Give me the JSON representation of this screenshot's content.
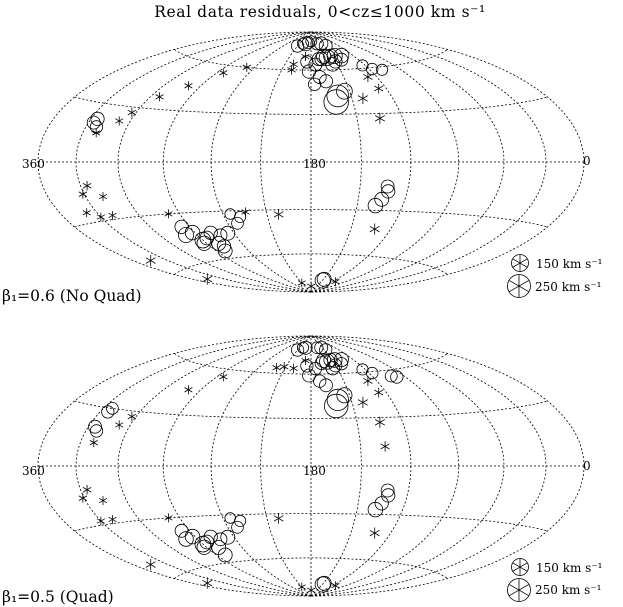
{
  "title": "Real data residuals, 0<cz≤1000 km s⁻¹",
  "colors": {
    "ink": "#000000",
    "background": "#ffffff"
  },
  "chart_data": [
    {
      "type": "scatter",
      "projection": "aitoff-hammer",
      "grid": true,
      "xlim": [
        360,
        0
      ],
      "tick_labels": {
        "left": "360",
        "center": "180",
        "right": "0"
      },
      "panel_label": "β₁=0.6 (No Quad)",
      "legend_placement": "bottom-right",
      "legend": [
        {
          "label": "150 km s⁻¹",
          "value": 150
        },
        {
          "label": "250 km s⁻¹",
          "value": 250
        }
      ],
      "points": [
        {
          "l": 213,
          "b": 78,
          "v": 70,
          "s": "pos"
        },
        {
          "l": 207,
          "b": 80,
          "v": 80,
          "s": "pos"
        },
        {
          "l": 196,
          "b": 80,
          "v": 60,
          "s": "pos"
        },
        {
          "l": 172,
          "b": 81,
          "v": 50,
          "s": "pos"
        },
        {
          "l": 166,
          "b": 80,
          "v": 90,
          "s": "pos"
        },
        {
          "l": 224,
          "b": 70,
          "v": 100,
          "s": "pos"
        },
        {
          "l": 214,
          "b": 70,
          "v": 110,
          "s": "pos"
        },
        {
          "l": 208,
          "b": 70,
          "v": 90,
          "s": "pos"
        },
        {
          "l": 202,
          "b": 69,
          "v": 120,
          "s": "pos"
        },
        {
          "l": 198,
          "b": 70,
          "v": 95,
          "s": "pos"
        },
        {
          "l": 194,
          "b": 68,
          "v": 80,
          "s": "pos"
        },
        {
          "l": 190,
          "b": 68,
          "v": 70,
          "s": "pos"
        },
        {
          "l": 219,
          "b": 67,
          "v": 70,
          "s": "pos"
        },
        {
          "l": 210,
          "b": 66,
          "v": 80,
          "s": "pos"
        },
        {
          "l": 205,
          "b": 64,
          "v": 90,
          "s": "pos"
        },
        {
          "l": 185,
          "b": 64,
          "v": 70,
          "s": "pos"
        },
        {
          "l": 175,
          "b": 66,
          "v": 60,
          "s": "pos"
        },
        {
          "l": 178,
          "b": 59,
          "v": 80,
          "s": "pos"
        },
        {
          "l": 188,
          "b": 55,
          "v": 70,
          "s": "pos"
        },
        {
          "l": 193,
          "b": 52,
          "v": 75,
          "s": "pos"
        },
        {
          "l": 183,
          "b": 50,
          "v": 60,
          "s": "pos"
        },
        {
          "l": 252,
          "b": 58,
          "v": 40,
          "s": "pos"
        },
        {
          "l": 243,
          "b": 59,
          "v": 45,
          "s": "pos"
        },
        {
          "l": 237,
          "b": 62,
          "v": 40,
          "s": "pos"
        },
        {
          "l": 200,
          "b": 42,
          "v": 230,
          "s": "pos"
        },
        {
          "l": 198,
          "b": 38,
          "v": 280,
          "s": "pos"
        },
        {
          "l": 206,
          "b": 45,
          "v": 120,
          "s": "pos"
        },
        {
          "l": 34,
          "b": 20,
          "v": 70,
          "s": "pos"
        },
        {
          "l": 35,
          "b": 22,
          "v": 80,
          "s": "pos"
        },
        {
          "l": 38,
          "b": 18,
          "v": 60,
          "s": "pos"
        },
        {
          "l": 227,
          "b": -15,
          "v": 70,
          "s": "pos"
        },
        {
          "l": 228,
          "b": -18,
          "v": 80,
          "s": "pos"
        },
        {
          "l": 225,
          "b": -23,
          "v": 90,
          "s": "pos"
        },
        {
          "l": 222,
          "b": -27,
          "v": 100,
          "s": "pos"
        },
        {
          "l": 131,
          "b": -34,
          "v": 40,
          "s": "pos"
        },
        {
          "l": 127,
          "b": -38,
          "v": 50,
          "s": "pos"
        },
        {
          "l": 115,
          "b": -44,
          "v": 90,
          "s": "pos"
        },
        {
          "l": 108,
          "b": -45,
          "v": 70,
          "s": "pos"
        },
        {
          "l": 102,
          "b": -43,
          "v": 80,
          "s": "pos"
        },
        {
          "l": 95,
          "b": -46,
          "v": 85,
          "s": "pos"
        },
        {
          "l": 90,
          "b": -47,
          "v": 120,
          "s": "pos"
        },
        {
          "l": 88,
          "b": -49,
          "v": 95,
          "s": "pos"
        },
        {
          "l": 88,
          "b": -42,
          "v": 100,
          "s": "pos"
        },
        {
          "l": 81,
          "b": -43,
          "v": 110,
          "s": "pos"
        },
        {
          "l": 100,
          "b": -50,
          "v": 90,
          "s": "pos"
        },
        {
          "l": 102,
          "b": -52,
          "v": 80,
          "s": "pos"
        },
        {
          "l": 98,
          "b": -55,
          "v": 90,
          "s": "pos"
        },
        {
          "l": 84,
          "b": -38,
          "v": 80,
          "s": "pos"
        },
        {
          "l": 212,
          "b": -79,
          "v": 90,
          "s": "pos"
        },
        {
          "l": 211,
          "b": -80,
          "v": 110,
          "s": "pos"
        },
        {
          "l": 159,
          "b": 80,
          "v": 40,
          "s": "pos"
        },
        {
          "l": 150,
          "b": 78,
          "v": 60,
          "s": "pos"
        },
        {
          "l": 181,
          "b": 82,
          "v": 35,
          "s": "pos"
        },
        {
          "l": 125,
          "b": -32,
          "v": 30,
          "s": "pos"
        },
        {
          "l": 172,
          "b": 70,
          "v": 40,
          "s": "neg"
        },
        {
          "l": 160,
          "b": 64,
          "v": 45,
          "s": "neg"
        },
        {
          "l": 232,
          "b": 54,
          "v": 70,
          "s": "neg"
        },
        {
          "l": 234,
          "b": 46,
          "v": 60,
          "s": "neg"
        },
        {
          "l": 218,
          "b": 40,
          "v": 90,
          "s": "neg"
        },
        {
          "l": 225,
          "b": 27,
          "v": 90,
          "s": "neg"
        },
        {
          "l": 160,
          "b": 60,
          "v": 50,
          "s": "neg"
        },
        {
          "l": 112,
          "b": 60,
          "v": 45,
          "s": "neg"
        },
        {
          "l": 96,
          "b": 55,
          "v": 45,
          "s": "neg"
        },
        {
          "l": 80,
          "b": 45,
          "v": 40,
          "s": "neg"
        },
        {
          "l": 67,
          "b": 37,
          "v": 40,
          "s": "neg"
        },
        {
          "l": 57,
          "b": 27,
          "v": 50,
          "s": "neg"
        },
        {
          "l": 52,
          "b": 22,
          "v": 40,
          "s": "neg"
        },
        {
          "l": 40,
          "b": 15,
          "v": 40,
          "s": "neg"
        },
        {
          "l": 35,
          "b": -12,
          "v": 50,
          "s": "neg"
        },
        {
          "l": 29,
          "b": -16,
          "v": 45,
          "s": "neg"
        },
        {
          "l": 43,
          "b": -18,
          "v": 40,
          "s": "neg"
        },
        {
          "l": 40,
          "b": -28,
          "v": 40,
          "s": "neg"
        },
        {
          "l": 30,
          "b": -28,
          "v": 40,
          "s": "neg"
        },
        {
          "l": 22,
          "b": -25,
          "v": 40,
          "s": "neg"
        },
        {
          "l": 82,
          "b": -30,
          "v": 40,
          "s": "neg"
        },
        {
          "l": 228,
          "b": -42,
          "v": 90,
          "s": "neg"
        },
        {
          "l": 158,
          "b": -33,
          "v": 80,
          "s": "neg"
        },
        {
          "l": 15,
          "b": -52,
          "v": 90,
          "s": "neg"
        },
        {
          "l": 13,
          "b": -67,
          "v": 90,
          "s": "neg"
        },
        {
          "l": 247,
          "b": -80,
          "v": 40,
          "s": "neg"
        },
        {
          "l": 136,
          "b": -31,
          "v": 45,
          "s": "neg"
        },
        {
          "l": 181,
          "b": -85,
          "v": 40,
          "s": "neg"
        },
        {
          "l": 150,
          "b": -82,
          "v": 35,
          "s": "neg"
        }
      ]
    },
    {
      "type": "scatter",
      "projection": "aitoff-hammer",
      "grid": true,
      "xlim": [
        360,
        0
      ],
      "tick_labels": {
        "left": "360",
        "center": "180",
        "right": "0"
      },
      "panel_label": "β₁=0.5 (Quad)",
      "legend_placement": "bottom-right",
      "legend": [
        {
          "label": "150 km s⁻¹",
          "value": 150
        },
        {
          "label": "250 km s⁻¹",
          "value": 250
        }
      ],
      "points": [
        {
          "l": 213,
          "b": 78,
          "v": 60,
          "s": "pos"
        },
        {
          "l": 207,
          "b": 80,
          "v": 70,
          "s": "pos"
        },
        {
          "l": 196,
          "b": 80,
          "v": 50,
          "s": "pos"
        },
        {
          "l": 166,
          "b": 80,
          "v": 70,
          "s": "pos"
        },
        {
          "l": 224,
          "b": 70,
          "v": 90,
          "s": "pos"
        },
        {
          "l": 214,
          "b": 70,
          "v": 100,
          "s": "pos"
        },
        {
          "l": 208,
          "b": 70,
          "v": 80,
          "s": "pos"
        },
        {
          "l": 202,
          "b": 69,
          "v": 110,
          "s": "pos"
        },
        {
          "l": 198,
          "b": 70,
          "v": 90,
          "s": "pos"
        },
        {
          "l": 194,
          "b": 68,
          "v": 70,
          "s": "pos"
        },
        {
          "l": 219,
          "b": 67,
          "v": 60,
          "s": "pos"
        },
        {
          "l": 210,
          "b": 66,
          "v": 70,
          "s": "pos"
        },
        {
          "l": 205,
          "b": 64,
          "v": 80,
          "s": "pos"
        },
        {
          "l": 185,
          "b": 64,
          "v": 60,
          "s": "pos"
        },
        {
          "l": 175,
          "b": 66,
          "v": 60,
          "s": "pos"
        },
        {
          "l": 178,
          "b": 59,
          "v": 70,
          "s": "pos"
        },
        {
          "l": 188,
          "b": 55,
          "v": 60,
          "s": "pos"
        },
        {
          "l": 193,
          "b": 52,
          "v": 70,
          "s": "pos"
        },
        {
          "l": 262,
          "b": 55,
          "v": 60,
          "s": "pos"
        },
        {
          "l": 258,
          "b": 56,
          "v": 55,
          "s": "pos"
        },
        {
          "l": 243,
          "b": 59,
          "v": 45,
          "s": "pos"
        },
        {
          "l": 237,
          "b": 62,
          "v": 40,
          "s": "pos"
        },
        {
          "l": 200,
          "b": 42,
          "v": 220,
          "s": "pos"
        },
        {
          "l": 198,
          "b": 38,
          "v": 260,
          "s": "pos"
        },
        {
          "l": 206,
          "b": 45,
          "v": 110,
          "s": "pos"
        },
        {
          "l": 37,
          "b": 30,
          "v": 50,
          "s": "pos"
        },
        {
          "l": 36,
          "b": 28,
          "v": 60,
          "s": "pos"
        },
        {
          "l": 35,
          "b": 20,
          "v": 70,
          "s": "pos"
        },
        {
          "l": 38,
          "b": 18,
          "v": 60,
          "s": "pos"
        },
        {
          "l": 227,
          "b": -15,
          "v": 70,
          "s": "pos"
        },
        {
          "l": 228,
          "b": -18,
          "v": 80,
          "s": "pos"
        },
        {
          "l": 225,
          "b": -23,
          "v": 80,
          "s": "pos"
        },
        {
          "l": 222,
          "b": -27,
          "v": 100,
          "s": "pos"
        },
        {
          "l": 131,
          "b": -34,
          "v": 40,
          "s": "pos"
        },
        {
          "l": 127,
          "b": -38,
          "v": 50,
          "s": "pos"
        },
        {
          "l": 115,
          "b": -44,
          "v": 90,
          "s": "pos"
        },
        {
          "l": 108,
          "b": -45,
          "v": 70,
          "s": "pos"
        },
        {
          "l": 102,
          "b": -43,
          "v": 80,
          "s": "pos"
        },
        {
          "l": 95,
          "b": -46,
          "v": 85,
          "s": "pos"
        },
        {
          "l": 90,
          "b": -47,
          "v": 120,
          "s": "pos"
        },
        {
          "l": 88,
          "b": -49,
          "v": 95,
          "s": "pos"
        },
        {
          "l": 88,
          "b": -42,
          "v": 100,
          "s": "pos"
        },
        {
          "l": 81,
          "b": -43,
          "v": 100,
          "s": "pos"
        },
        {
          "l": 100,
          "b": -50,
          "v": 90,
          "s": "pos"
        },
        {
          "l": 98,
          "b": -55,
          "v": 90,
          "s": "pos"
        },
        {
          "l": 212,
          "b": -79,
          "v": 90,
          "s": "pos"
        },
        {
          "l": 211,
          "b": -80,
          "v": 110,
          "s": "pos"
        },
        {
          "l": 159,
          "b": 80,
          "v": 40,
          "s": "pos"
        },
        {
          "l": 150,
          "b": 78,
          "v": 60,
          "s": "pos"
        },
        {
          "l": 125,
          "b": -32,
          "v": 30,
          "s": "pos"
        },
        {
          "l": 84,
          "b": -38,
          "v": 70,
          "s": "pos"
        },
        {
          "l": 172,
          "b": 70,
          "v": 40,
          "s": "neg"
        },
        {
          "l": 160,
          "b": 64,
          "v": 45,
          "s": "neg"
        },
        {
          "l": 232,
          "b": 54,
          "v": 70,
          "s": "neg"
        },
        {
          "l": 234,
          "b": 46,
          "v": 60,
          "s": "neg"
        },
        {
          "l": 218,
          "b": 40,
          "v": 90,
          "s": "neg"
        },
        {
          "l": 225,
          "b": 27,
          "v": 90,
          "s": "neg"
        },
        {
          "l": 225,
          "b": 12,
          "v": 70,
          "s": "neg"
        },
        {
          "l": 148,
          "b": 65,
          "v": 50,
          "s": "neg"
        },
        {
          "l": 140,
          "b": 64,
          "v": 45,
          "s": "neg"
        },
        {
          "l": 96,
          "b": 55,
          "v": 45,
          "s": "neg"
        },
        {
          "l": 80,
          "b": 45,
          "v": 40,
          "s": "neg"
        },
        {
          "l": 57,
          "b": 27,
          "v": 50,
          "s": "neg"
        },
        {
          "l": 52,
          "b": 22,
          "v": 40,
          "s": "neg"
        },
        {
          "l": 40,
          "b": 12,
          "v": 40,
          "s": "neg"
        },
        {
          "l": 35,
          "b": -12,
          "v": 50,
          "s": "neg"
        },
        {
          "l": 29,
          "b": -16,
          "v": 45,
          "s": "neg"
        },
        {
          "l": 43,
          "b": -18,
          "v": 40,
          "s": "neg"
        },
        {
          "l": 40,
          "b": -28,
          "v": 40,
          "s": "neg"
        },
        {
          "l": 30,
          "b": -28,
          "v": 40,
          "s": "neg"
        },
        {
          "l": 82,
          "b": -30,
          "v": 40,
          "s": "neg"
        },
        {
          "l": 228,
          "b": -42,
          "v": 90,
          "s": "neg"
        },
        {
          "l": 158,
          "b": -33,
          "v": 80,
          "s": "neg"
        },
        {
          "l": 15,
          "b": -52,
          "v": 90,
          "s": "neg"
        },
        {
          "l": 13,
          "b": -67,
          "v": 90,
          "s": "neg"
        },
        {
          "l": 247,
          "b": -80,
          "v": 40,
          "s": "neg"
        },
        {
          "l": 181,
          "b": -85,
          "v": 40,
          "s": "neg"
        },
        {
          "l": 150,
          "b": -82,
          "v": 35,
          "s": "neg"
        }
      ]
    }
  ]
}
